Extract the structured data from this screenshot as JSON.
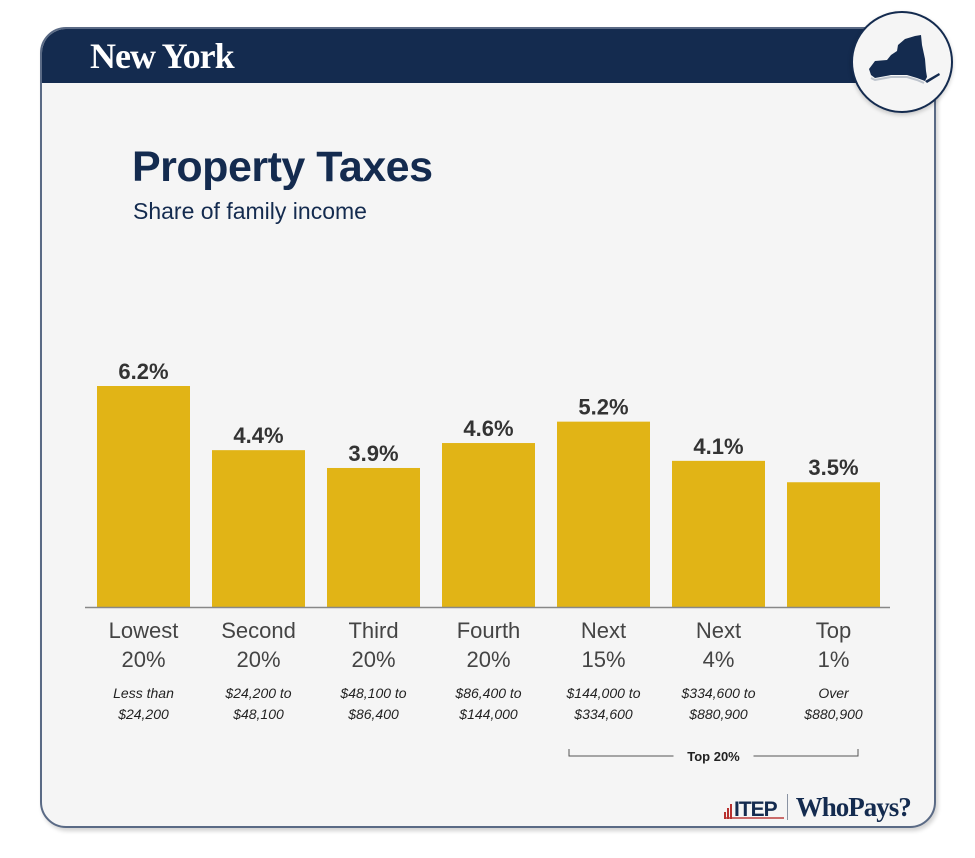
{
  "header": {
    "state_name": "New York",
    "state_icon": "new-york-state-silhouette-icon"
  },
  "title": "Property Taxes",
  "subtitle": "Share of family income",
  "colors": {
    "navy": "#142b4f",
    "bar": "#e1b416",
    "value_label": "#333333",
    "category_label": "#444444",
    "income_label": "#222222",
    "baseline": "#888888",
    "itep_red": "#b8312f"
  },
  "chart_data": {
    "type": "bar",
    "title": "Property Taxes",
    "subtitle": "Share of family income",
    "xlabel": "",
    "ylabel": "Share of family income",
    "ylim": [
      0,
      6.2
    ],
    "grid": false,
    "legend": "none",
    "categories": [
      "Lowest 20%",
      "Second 20%",
      "Third 20%",
      "Fourth 20%",
      "Next 15%",
      "Next 4%",
      "Top 1%"
    ],
    "category_lines": [
      [
        "Lowest",
        "20%"
      ],
      [
        "Second",
        "20%"
      ],
      [
        "Third",
        "20%"
      ],
      [
        "Fourth",
        "20%"
      ],
      [
        "Next",
        "15%"
      ],
      [
        "Next",
        "4%"
      ],
      [
        "Top",
        "1%"
      ]
    ],
    "income_ranges": [
      [
        "Less than",
        "$24,200"
      ],
      [
        "$24,200 to",
        "$48,100"
      ],
      [
        "$48,100 to",
        "$86,400"
      ],
      [
        "$86,400 to",
        "$144,000"
      ],
      [
        "$144,000 to",
        "$334,600"
      ],
      [
        "$334,600 to",
        "$880,900"
      ],
      [
        "Over",
        "$880,900"
      ]
    ],
    "values": [
      6.2,
      4.4,
      3.9,
      4.6,
      5.2,
      4.1,
      3.5
    ],
    "value_labels": [
      "6.2%",
      "4.4%",
      "3.9%",
      "4.6%",
      "5.2%",
      "4.1%",
      "3.5%"
    ],
    "annotations": [
      {
        "text": "Top 20%",
        "spans_categories": [
          "Next 15%",
          "Next 4%",
          "Top 1%"
        ]
      }
    ]
  },
  "footer": {
    "org_logo": "ITEP",
    "product_logo": "WhoPays?"
  }
}
